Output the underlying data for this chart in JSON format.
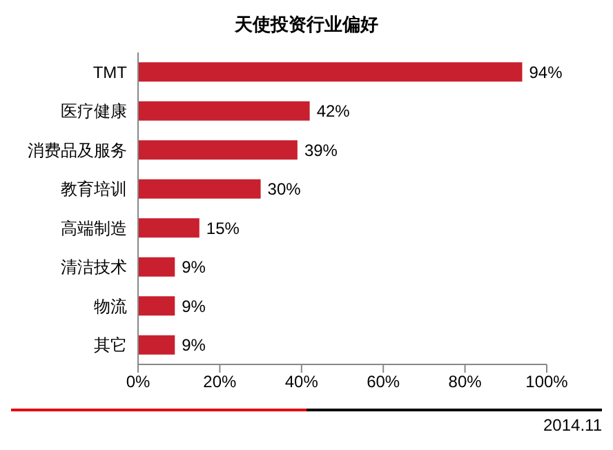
{
  "chart_data": {
    "type": "bar",
    "orientation": "horizontal",
    "title": "天使投资行业偏好",
    "categories": [
      "TMT",
      "医疗健康",
      "消费品及服务",
      "教育培训",
      "高端制造",
      "清洁技术",
      "物流",
      "其它"
    ],
    "values": [
      94,
      42,
      39,
      30,
      15,
      9,
      9,
      9
    ],
    "value_labels": [
      "94%",
      "42%",
      "39%",
      "30%",
      "15%",
      "9%",
      "9%",
      "9%"
    ],
    "color": "#c8202f",
    "xlim": [
      0,
      100
    ],
    "xticks": [
      {
        "value": 0,
        "label": "0%"
      },
      {
        "value": 20,
        "label": "20%"
      },
      {
        "value": 40,
        "label": "40%"
      },
      {
        "value": 60,
        "label": "60%"
      },
      {
        "value": 80,
        "label": "80%"
      },
      {
        "value": 100,
        "label": "100%"
      }
    ],
    "grid": false,
    "annotations": [
      "2014.11"
    ]
  }
}
